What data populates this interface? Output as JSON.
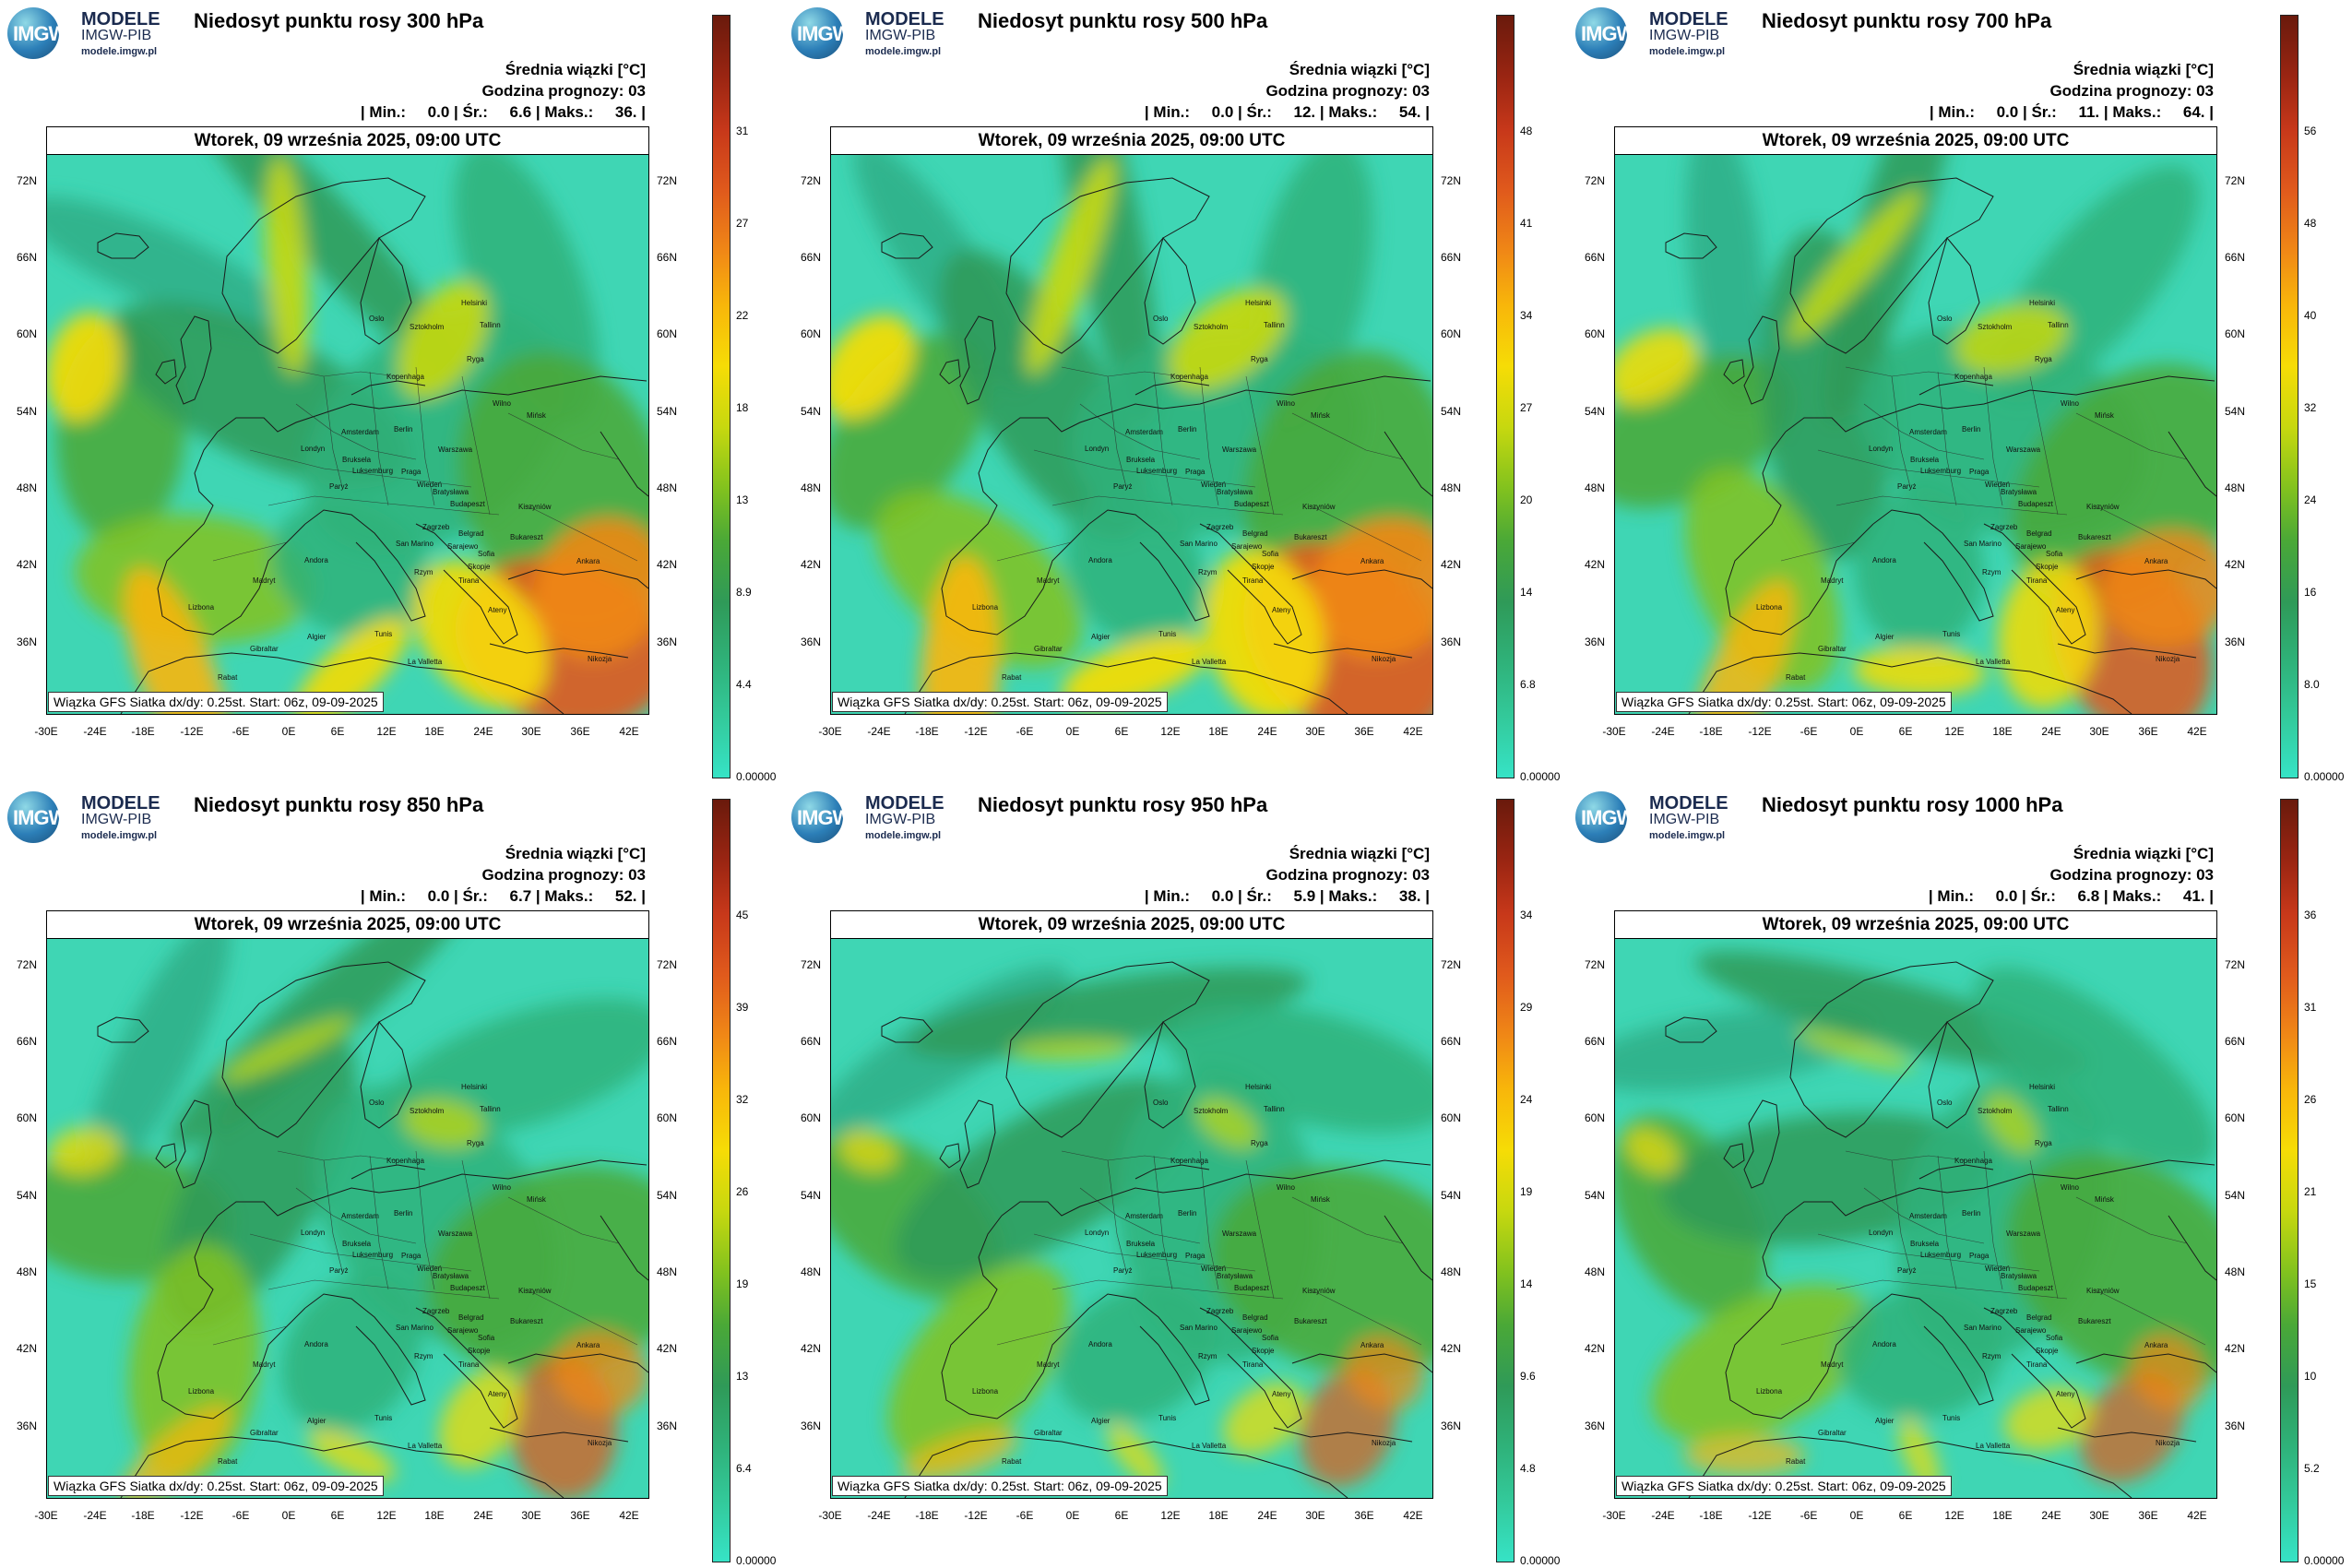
{
  "logo": {
    "line1": "MODELE",
    "line2": "IMGW-PIB",
    "line3": "modele.imgw.pl",
    "mark": "IMGW"
  },
  "date_label": "Wtorek, 09 września 2025, 09:00 UTC",
  "footnote": "Wiązka GFS Siatka dx/dy: 0.25st. Start: 06z, 09-09-2025",
  "mean_label": "Średnia wiązki [°C]",
  "forecast_hour_label": "Godzina prognozy: 03",
  "lat_labels": [
    "72N",
    "66N",
    "60N",
    "54N",
    "48N",
    "42N",
    "36N"
  ],
  "lon_labels": [
    "-30E",
    "-24E",
    "-18E",
    "-12E",
    "-6E",
    "0E",
    "6E",
    "12E",
    "18E",
    "24E",
    "30E",
    "36E",
    "42E"
  ],
  "colorscale": [
    "#36e3c6",
    "#33c99a",
    "#2fb27a",
    "#2f9a58",
    "#4aa837",
    "#82c21e",
    "#c7d80f",
    "#f6dc06",
    "#f8b60a",
    "#f08816",
    "#e05a1c",
    "#c7381a",
    "#9a2512",
    "#6a1a0c"
  ],
  "panels": [
    {
      "id": "300",
      "title": "Niedosyt punktu rosy 300 hPa",
      "stats": "| Min.:     0.0 | Śr.:     6.6 | Maks.:     36. |",
      "ticks": [
        "0.00000",
        "4.4",
        "8.9",
        "13",
        "18",
        "22",
        "27",
        "31"
      ],
      "scale": 1.0,
      "ang": 0.6
    },
    {
      "id": "500",
      "title": "Niedosyt punktu rosy 500 hPa",
      "stats": "| Min.:     0.0 | Śr.:     12. | Maks.:     54. |",
      "ticks": [
        "0.00000",
        "6.8",
        "14",
        "20",
        "27",
        "34",
        "41",
        "48"
      ],
      "scale": 1.05,
      "ang": 1.4
    },
    {
      "id": "700",
      "title": "Niedosyt punktu rosy 700 hPa",
      "stats": "| Min.:     0.0 | Śr.:     11. | Maks.:     64. |",
      "ticks": [
        "0.00000",
        "8.0",
        "16",
        "24",
        "32",
        "40",
        "48",
        "56"
      ],
      "scale": 0.9,
      "ang": 2.1
    },
    {
      "id": "850",
      "title": "Niedosyt punktu rosy 850 hPa",
      "stats": "| Min.:     0.0 | Śr.:     6.7 | Maks.:     52. |",
      "ticks": [
        "0.00000",
        "6.4",
        "13",
        "19",
        "26",
        "32",
        "39",
        "45"
      ],
      "scale": 0.65,
      "ang": 2.9
    },
    {
      "id": "950",
      "title": "Niedosyt punktu rosy 950 hPa",
      "stats": "| Min.:     0.0 | Śr.:     5.9 | Maks.:     38. |",
      "ticks": [
        "0.00000",
        "4.8",
        "9.6",
        "14",
        "19",
        "24",
        "29",
        "34"
      ],
      "scale": 0.55,
      "ang": 3.7
    },
    {
      "id": "1000",
      "title": "Niedosyt punktu rosy 1000 hPa",
      "stats": "| Min.:     0.0 | Śr.:     6.8 | Maks.:     41. |",
      "ticks": [
        "0.00000",
        "5.2",
        "10",
        "15",
        "21",
        "26",
        "31",
        "36"
      ],
      "scale": 0.55,
      "ang": 4.3
    }
  ],
  "cities": [
    "Oslo",
    "Sztokholm",
    "Helsinki",
    "Tallinn",
    "Ryga",
    "Kopenhaga",
    "Wilno",
    "Mińsk",
    "Amsterdam",
    "Berlin",
    "Warszawa",
    "Londyn",
    "Bruksela",
    "Luksemburg",
    "Paryż",
    "Praga",
    "Wiedeń",
    "Bratysława",
    "Budapeszt",
    "Kiszyniów",
    "Bukareszt",
    "Zagrzeb",
    "Belgrad",
    "Sarajewo",
    "Sofia",
    "Skopje",
    "Tirana",
    "Ateny",
    "Ankara",
    "Nikozja",
    "Andora",
    "Madryt",
    "Lizbona",
    "Rzym",
    "San Marino",
    "Gibraltar",
    "Rabat",
    "Algier",
    "Tunis",
    "La Valletta"
  ]
}
